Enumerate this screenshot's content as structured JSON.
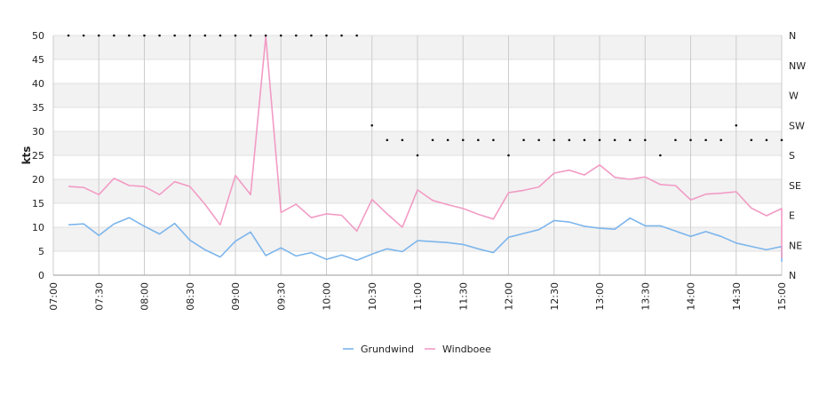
{
  "chart_data": {
    "type": "line",
    "ylabel": "kts",
    "ylim": [
      0,
      50
    ],
    "y_ticks": [
      0,
      5,
      10,
      15,
      20,
      25,
      30,
      35,
      40,
      45,
      50
    ],
    "xlim": [
      "07:00",
      "15:00"
    ],
    "x_tick_labels": [
      "07:00",
      "07:30",
      "08:00",
      "08:30",
      "09:00",
      "09:30",
      "10:00",
      "10:30",
      "11:00",
      "11:30",
      "12:00",
      "12:30",
      "13:00",
      "13:30",
      "14:00",
      "14:30",
      "15:00"
    ],
    "direction_axis": {
      "labels": [
        "N",
        "NE",
        "E",
        "SE",
        "S",
        "SW",
        "W",
        "NW",
        "N"
      ],
      "range_degrees": [
        0,
        360
      ]
    },
    "grid": true,
    "legend_position": "bottom-center",
    "series": [
      {
        "name": "Grundwind",
        "color": "#7cb5ec",
        "points": [
          [
            "07:10",
            10.5
          ],
          [
            "07:20",
            10.7
          ],
          [
            "07:30",
            8.3
          ],
          [
            "07:40",
            10.7
          ],
          [
            "07:50",
            12
          ],
          [
            "08:00",
            10.2
          ],
          [
            "08:10",
            8.6
          ],
          [
            "08:20",
            10.8
          ],
          [
            "08:30",
            7.3
          ],
          [
            "08:40",
            5.3
          ],
          [
            "08:50",
            3.8
          ],
          [
            "09:00",
            7.1
          ],
          [
            "09:10",
            9
          ],
          [
            "09:20",
            4.1
          ],
          [
            "09:30",
            5.7
          ],
          [
            "09:40",
            4
          ],
          [
            "09:50",
            4.7
          ],
          [
            "10:00",
            3.3
          ],
          [
            "10:10",
            4.2
          ],
          [
            "10:20",
            3.1
          ],
          [
            "10:30",
            4.4
          ],
          [
            "10:40",
            5.5
          ],
          [
            "10:50",
            4.9
          ],
          [
            "11:00",
            7.2
          ],
          [
            "11:10",
            7
          ],
          [
            "11:20",
            6.8
          ],
          [
            "11:30",
            6.4
          ],
          [
            "11:40",
            5.5
          ],
          [
            "11:50",
            4.7
          ],
          [
            "12:00",
            7.9
          ],
          [
            "12:10",
            8.7
          ],
          [
            "12:20",
            9.5
          ],
          [
            "12:30",
            11.4
          ],
          [
            "12:40",
            11.1
          ],
          [
            "12:50",
            10.2
          ],
          [
            "13:00",
            9.8
          ],
          [
            "13:10",
            9.6
          ],
          [
            "13:20",
            11.9
          ],
          [
            "13:30",
            10.3
          ],
          [
            "13:40",
            10.3
          ],
          [
            "13:50",
            9.2
          ],
          [
            "14:00",
            8.1
          ],
          [
            "14:10",
            9.1
          ],
          [
            "14:20",
            8.1
          ],
          [
            "14:30",
            6.7
          ],
          [
            "14:40",
            6
          ],
          [
            "14:50",
            5.3
          ],
          [
            "15:00",
            6
          ],
          [
            "15:00",
            2.8
          ]
        ]
      },
      {
        "name": "Windboee",
        "color": "#f29bc4",
        "points": [
          [
            "07:10",
            18.5
          ],
          [
            "07:20",
            18.3
          ],
          [
            "07:30",
            16.8
          ],
          [
            "07:40",
            20.2
          ],
          [
            "07:50",
            18.7
          ],
          [
            "08:00",
            18.5
          ],
          [
            "08:10",
            16.8
          ],
          [
            "08:20",
            19.5
          ],
          [
            "08:30",
            18.5
          ],
          [
            "08:40",
            14.8
          ],
          [
            "08:50",
            10.5
          ],
          [
            "09:00",
            20.8
          ],
          [
            "09:10",
            16.8
          ],
          [
            "09:20",
            49.8
          ],
          [
            "09:30",
            13.1
          ],
          [
            "09:40",
            14.8
          ],
          [
            "09:50",
            12
          ],
          [
            "10:00",
            12.8
          ],
          [
            "10:10",
            12.5
          ],
          [
            "10:20",
            9.2
          ],
          [
            "10:30",
            15.8
          ],
          [
            "10:40",
            12.8
          ],
          [
            "10:50",
            10
          ],
          [
            "11:00",
            17.8
          ],
          [
            "11:10",
            15.6
          ],
          [
            "11:20",
            14.7
          ],
          [
            "11:30",
            13.9
          ],
          [
            "11:40",
            12.7
          ],
          [
            "11:50",
            11.7
          ],
          [
            "12:00",
            17.2
          ],
          [
            "12:10",
            17.7
          ],
          [
            "12:20",
            18.4
          ],
          [
            "12:30",
            21.3
          ],
          [
            "12:40",
            21.9
          ],
          [
            "12:50",
            20.9
          ],
          [
            "13:00",
            23
          ],
          [
            "13:10",
            20.4
          ],
          [
            "13:20",
            20
          ],
          [
            "13:30",
            20.5
          ],
          [
            "13:40",
            18.9
          ],
          [
            "13:50",
            18.7
          ],
          [
            "14:00",
            15.7
          ],
          [
            "14:10",
            16.9
          ],
          [
            "14:20",
            17.1
          ],
          [
            "14:30",
            17.4
          ],
          [
            "14:40",
            14
          ],
          [
            "14:50",
            12.4
          ],
          [
            "15:00",
            13.9
          ],
          [
            "15:00",
            3.6
          ]
        ]
      }
    ],
    "direction_points": [
      [
        "07:10",
        360
      ],
      [
        "07:20",
        360
      ],
      [
        "07:30",
        360
      ],
      [
        "07:40",
        360
      ],
      [
        "07:50",
        360
      ],
      [
        "08:00",
        360
      ],
      [
        "08:10",
        360
      ],
      [
        "08:20",
        360
      ],
      [
        "08:30",
        360
      ],
      [
        "08:40",
        360
      ],
      [
        "08:50",
        360
      ],
      [
        "09:00",
        360
      ],
      [
        "09:10",
        360
      ],
      [
        "09:20",
        360
      ],
      [
        "09:30",
        360
      ],
      [
        "09:40",
        360
      ],
      [
        "09:50",
        360
      ],
      [
        "10:00",
        360
      ],
      [
        "10:10",
        360
      ],
      [
        "10:20",
        360
      ],
      [
        "10:30",
        225
      ],
      [
        "10:40",
        203
      ],
      [
        "10:50",
        203
      ],
      [
        "11:00",
        180
      ],
      [
        "11:10",
        203
      ],
      [
        "11:20",
        203
      ],
      [
        "11:30",
        203
      ],
      [
        "11:40",
        203
      ],
      [
        "11:50",
        203
      ],
      [
        "12:00",
        180
      ],
      [
        "12:10",
        203
      ],
      [
        "12:20",
        203
      ],
      [
        "12:30",
        203
      ],
      [
        "12:40",
        203
      ],
      [
        "12:50",
        203
      ],
      [
        "13:00",
        203
      ],
      [
        "13:10",
        203
      ],
      [
        "13:20",
        203
      ],
      [
        "13:30",
        203
      ],
      [
        "13:40",
        180
      ],
      [
        "13:50",
        203
      ],
      [
        "14:00",
        203
      ],
      [
        "14:10",
        203
      ],
      [
        "14:20",
        203
      ],
      [
        "14:30",
        225
      ],
      [
        "14:40",
        203
      ],
      [
        "14:50",
        203
      ],
      [
        "15:00",
        203
      ]
    ]
  }
}
